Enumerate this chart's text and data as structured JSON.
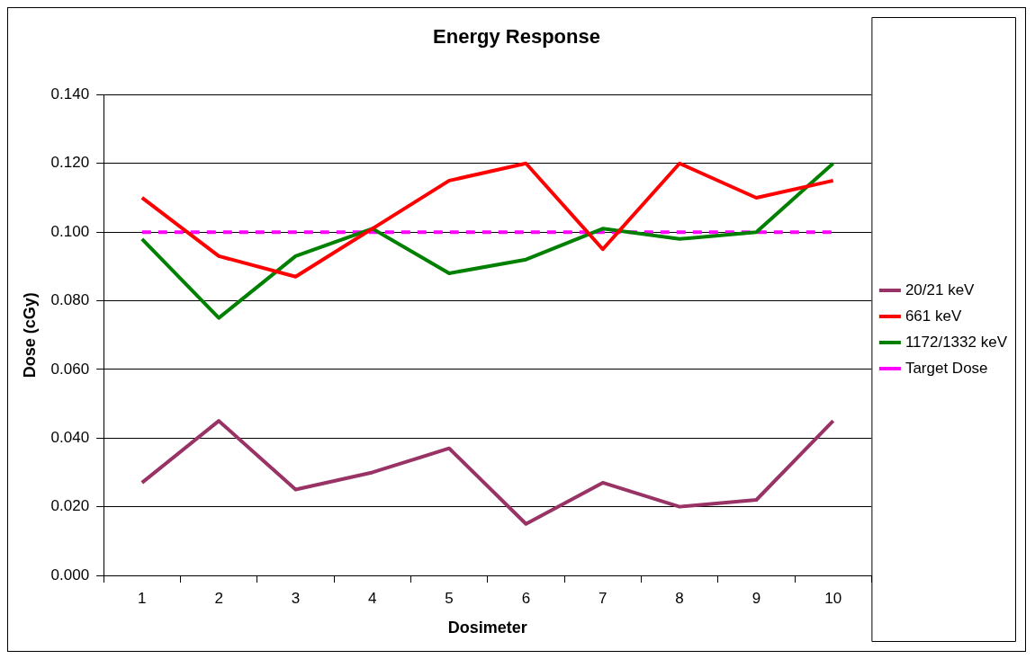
{
  "chart_data": {
    "type": "line",
    "title": "Energy Response",
    "xlabel": "Dosimeter",
    "ylabel": "Dose (cGy)",
    "categories": [
      "1",
      "2",
      "3",
      "4",
      "5",
      "6",
      "7",
      "8",
      "9",
      "10"
    ],
    "series": [
      {
        "name": "20/21 keV",
        "color": "#993366",
        "values": [
          0.027,
          0.045,
          0.025,
          0.03,
          0.037,
          0.015,
          0.027,
          0.02,
          0.022,
          0.045
        ]
      },
      {
        "name": "661 keV",
        "color": "#ff0000",
        "values": [
          0.11,
          0.093,
          0.087,
          0.101,
          0.115,
          0.12,
          0.095,
          0.12,
          0.11,
          0.115
        ]
      },
      {
        "name": "1172/1332 keV",
        "color": "#008000",
        "values": [
          0.098,
          0.075,
          0.093,
          0.101,
          0.088,
          0.092,
          0.101,
          0.098,
          0.1,
          0.12
        ]
      },
      {
        "name": "Target Dose",
        "color": "#ff00ff",
        "line_style": "dashed",
        "values": [
          0.1,
          0.1,
          0.1,
          0.1,
          0.1,
          0.1,
          0.1,
          0.1,
          0.1,
          0.1
        ]
      }
    ],
    "ylim": [
      0,
      0.14
    ],
    "yticks": [
      {
        "value": 0,
        "label": "0.000"
      },
      {
        "value": 0.02,
        "label": "0.020"
      },
      {
        "value": 0.04,
        "label": "0.040"
      },
      {
        "value": 0.06,
        "label": "0.060"
      },
      {
        "value": 0.08,
        "label": "0.080"
      },
      {
        "value": 0.1,
        "label": "0.100"
      },
      {
        "value": 0.12,
        "label": "0.120"
      },
      {
        "value": 0.14,
        "label": "0.140"
      }
    ],
    "grid": "y",
    "legend": "right",
    "marker": "none"
  }
}
